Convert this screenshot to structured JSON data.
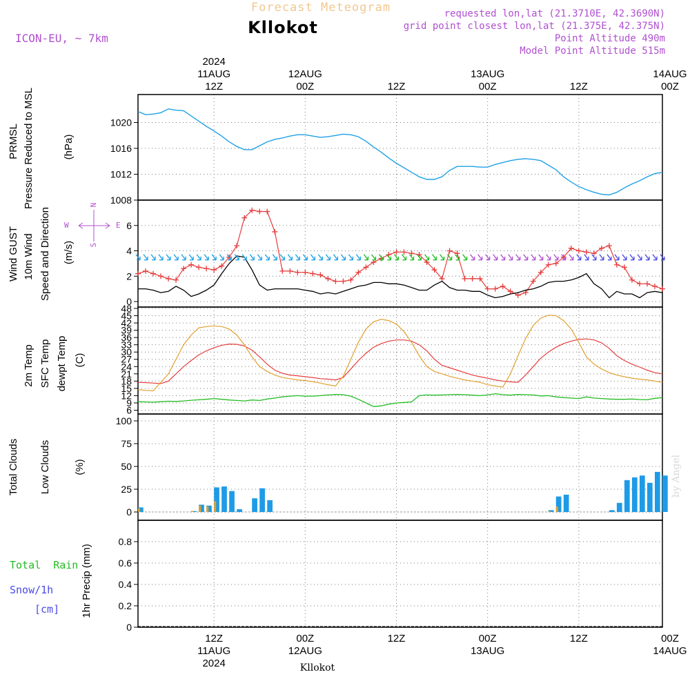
{
  "header": {
    "super_title": "Forecast Meteogram",
    "location": "Kllokot",
    "model": "ICON-EU,  ~ 7km",
    "requested": "requested lon,lat (21.3710E, 42.3690N)",
    "grid_point": "grid point closest lon,lat (21.375E, 42.375N)",
    "point_altitude": "Point Altitude 490m",
    "model_altitude": "Model Point Altitude 515m",
    "footer_location": "Kllokot",
    "credit": "by Angel"
  },
  "colors": {
    "pressure": "#1ea0e6",
    "gust": "#e63c3c",
    "wind": "#000000",
    "green": "#22bb22",
    "orange": "#e0a030",
    "total_clouds": "#1e9be6",
    "low_clouds": "#e0a030",
    "snow": "#4a4ae6",
    "purple": "#b050d0"
  },
  "time_axis": {
    "hours_start": 0,
    "hours_end": 69,
    "top_ticks": [
      {
        "hour": 10,
        "lines": [
          "2024",
          "11AUG",
          "12Z"
        ]
      },
      {
        "hour": 22,
        "lines": [
          "12AUG",
          "00Z"
        ]
      },
      {
        "hour": 34,
        "lines": [
          "12Z"
        ]
      },
      {
        "hour": 46,
        "lines": [
          "13AUG",
          "00Z"
        ]
      },
      {
        "hour": 58,
        "lines": [
          "12Z"
        ]
      },
      {
        "hour": 70,
        "lines": [
          "14AUG",
          "00Z"
        ]
      }
    ],
    "bottom_ticks": [
      {
        "hour": 10,
        "lines": [
          "12Z",
          "11AUG",
          "2024"
        ]
      },
      {
        "hour": 22,
        "lines": [
          "00Z",
          "12AUG"
        ]
      },
      {
        "hour": 34,
        "lines": [
          "12Z"
        ]
      },
      {
        "hour": 46,
        "lines": [
          "00Z",
          "13AUG"
        ]
      },
      {
        "hour": 58,
        "lines": [
          "12Z"
        ]
      },
      {
        "hour": 70,
        "lines": [
          "00Z",
          "14AUG"
        ]
      }
    ]
  },
  "panel_labels": {
    "pressure": {
      "name": "PRMSL",
      "sub": "Pressure Reduced to MSL",
      "unit": "(hPa)"
    },
    "wind": {
      "gust": "Wind GUST",
      "wind": "10m Wind",
      "dir": "Speed and Direction",
      "unit": "(m/s)",
      "compass_n": "N",
      "compass_s": "S",
      "compass_e": "E",
      "compass_w": "W"
    },
    "temp": {
      "t2m": "2m Temp",
      "sfc": "SFC Temp",
      "dewpt": "dewpt Temp",
      "unit": "(C)"
    },
    "clouds": {
      "total": "Total Clouds",
      "low": "Low Clouds",
      "unit": "(%)"
    },
    "precip": {
      "rain": "Total  Rain",
      "snow": "Snow/1h",
      "snow_unit": "[cm]",
      "axis": "1hr Precip (mm)"
    }
  },
  "chart_data": [
    {
      "type": "line",
      "panel": "pressure",
      "ylim": [
        1008,
        1024
      ],
      "yticks": [
        1008,
        1012,
        1016,
        1020
      ],
      "x": [
        0,
        1,
        2,
        3,
        4,
        5,
        6,
        7,
        8,
        9,
        10,
        11,
        12,
        13,
        14,
        15,
        16,
        17,
        18,
        19,
        20,
        21,
        22,
        23,
        24,
        25,
        26,
        27,
        28,
        29,
        30,
        31,
        32,
        33,
        34,
        35,
        36,
        37,
        38,
        39,
        40,
        41,
        42,
        43,
        44,
        45,
        46,
        47,
        48,
        49,
        50,
        51,
        52,
        53,
        54,
        55,
        56,
        57,
        58,
        59,
        60,
        61,
        62,
        63,
        64,
        65,
        66,
        67,
        68,
        69
      ],
      "series": [
        {
          "values": [
            1021.7,
            1021.2,
            1021.3,
            1021.5,
            1022.1,
            1021.9,
            1021.8,
            1021.0,
            1020.2,
            1019.4,
            1018.7,
            1017.9,
            1017.0,
            1016.3,
            1015.8,
            1015.8,
            1016.4,
            1017.0,
            1017.4,
            1017.6,
            1017.9,
            1018.1,
            1018.1,
            1017.9,
            1017.7,
            1017.8,
            1018.0,
            1018.2,
            1018.1,
            1017.8,
            1017.1,
            1016.2,
            1015.4,
            1014.5,
            1013.7,
            1013.0,
            1012.3,
            1011.6,
            1011.2,
            1011.2,
            1011.6,
            1012.6,
            1013.2,
            1013.2,
            1013.2,
            1013.1,
            1013.1,
            1013.5,
            1013.8,
            1014.1,
            1014.3,
            1014.4,
            1014.3,
            1014.1,
            1013.4,
            1012.7,
            1011.6,
            1010.8,
            1010.1,
            1009.6,
            1009.2,
            1008.9,
            1008.8,
            1009.2,
            1009.9,
            1010.5,
            1011.0,
            1011.6,
            1012.1,
            1012.3
          ]
        }
      ]
    },
    {
      "type": "line",
      "panel": "wind",
      "ylim": [
        0,
        8
      ],
      "yticks": [
        0,
        2,
        4,
        6
      ],
      "x": [
        0,
        1,
        2,
        3,
        4,
        5,
        6,
        7,
        8,
        9,
        10,
        11,
        12,
        13,
        14,
        15,
        16,
        17,
        18,
        19,
        20,
        21,
        22,
        23,
        24,
        25,
        26,
        27,
        28,
        29,
        30,
        31,
        32,
        33,
        34,
        35,
        36,
        37,
        38,
        39,
        40,
        41,
        42,
        43,
        44,
        45,
        46,
        47,
        48,
        49,
        50,
        51,
        52,
        53,
        54,
        55,
        56,
        57,
        58,
        59,
        60,
        61,
        62,
        63,
        64,
        65,
        66,
        67,
        68,
        69
      ],
      "series": [
        {
          "values": [
            2.2,
            2.4,
            2.2,
            2.0,
            1.8,
            1.7,
            2.6,
            2.9,
            2.7,
            2.6,
            2.5,
            2.8,
            3.5,
            4.4,
            6.6,
            7.2,
            7.1,
            7.1,
            5.5,
            2.4,
            2.4,
            2.3,
            2.3,
            2.2,
            2.1,
            1.8,
            1.6,
            1.6,
            1.7,
            2.3,
            2.7,
            3.1,
            3.4,
            3.7,
            3.9,
            3.9,
            3.8,
            3.7,
            3.1,
            2.5,
            1.8,
            4.0,
            3.8,
            1.8,
            1.8,
            1.8,
            1.0,
            1.0,
            1.2,
            0.8,
            0.5,
            0.7,
            1.6,
            2.3,
            2.9,
            3.0,
            3.5,
            4.2,
            4.0,
            3.9,
            3.8,
            4.2,
            4.4,
            2.9,
            2.7,
            1.7,
            1.4,
            1.4,
            1.2,
            1.0
          ]
        },
        {
          "values": [
            1.0,
            1.0,
            0.9,
            0.7,
            0.8,
            1.2,
            0.9,
            0.4,
            0.6,
            0.9,
            1.3,
            2.2,
            3.0,
            3.6,
            3.5,
            2.5,
            1.3,
            0.9,
            1.0,
            1.0,
            1.0,
            1.0,
            0.9,
            0.8,
            0.6,
            0.7,
            0.6,
            0.8,
            1.0,
            1.2,
            1.3,
            1.5,
            1.5,
            1.4,
            1.4,
            1.3,
            1.1,
            0.9,
            0.9,
            1.3,
            1.6,
            1.1,
            0.9,
            0.9,
            0.8,
            0.8,
            0.5,
            0.3,
            0.4,
            0.6,
            0.7,
            0.9,
            1.0,
            1.2,
            1.5,
            1.6,
            1.6,
            1.7,
            1.9,
            2.2,
            1.4,
            1.0,
            0.3,
            0.8,
            0.6,
            0.6,
            0.3,
            0.7,
            0.8,
            0.7
          ]
        }
      ]
    },
    {
      "type": "line",
      "panel": "temperature",
      "ylim": [
        5,
        48
      ],
      "yticks": [
        6,
        9,
        12,
        15,
        18,
        21,
        24,
        27,
        30,
        33,
        36,
        39,
        42,
        45,
        48
      ],
      "x": [
        0,
        1,
        2,
        3,
        4,
        5,
        6,
        7,
        8,
        9,
        10,
        11,
        12,
        13,
        14,
        15,
        16,
        17,
        18,
        19,
        20,
        21,
        22,
        23,
        24,
        25,
        26,
        27,
        28,
        29,
        30,
        31,
        32,
        33,
        34,
        35,
        36,
        37,
        38,
        39,
        40,
        41,
        42,
        43,
        44,
        45,
        46,
        47,
        48,
        49,
        50,
        51,
        52,
        53,
        54,
        55,
        56,
        57,
        58,
        59,
        60,
        61,
        62,
        63,
        64,
        65,
        66,
        67,
        68,
        69
      ],
      "series": [
        {
          "values": [
            17.5,
            17.4,
            17.2,
            17.0,
            18.0,
            21.0,
            24.0,
            26.5,
            28.8,
            30.5,
            31.8,
            32.8,
            33.3,
            33.2,
            32.5,
            30.8,
            28.0,
            25.0,
            22.5,
            21.2,
            20.5,
            20.2,
            19.8,
            19.5,
            19.0,
            18.8,
            18.5,
            19.5,
            23.0,
            26.5,
            29.5,
            32.0,
            33.5,
            34.5,
            35.0,
            35.0,
            34.5,
            33.0,
            30.5,
            27.0,
            24.5,
            23.5,
            22.5,
            21.5,
            20.5,
            19.8,
            19.2,
            18.5,
            18.0,
            17.7,
            17.5,
            20.5,
            24.0,
            27.5,
            30.0,
            32.0,
            33.5,
            34.5,
            35.2,
            35.4,
            35.0,
            33.8,
            31.5,
            28.5,
            26.5,
            25.0,
            23.8,
            22.5,
            21.5,
            21.0
          ]
        },
        {
          "values": [
            14.5,
            14.2,
            14.0,
            17.5,
            21.0,
            27.0,
            33.0,
            37.0,
            40.0,
            40.5,
            40.8,
            40.5,
            39.5,
            37.0,
            33.0,
            28.0,
            24.0,
            22.0,
            20.5,
            19.5,
            19.0,
            18.5,
            18.2,
            17.8,
            17.2,
            16.5,
            16.0,
            20.0,
            27.0,
            34.0,
            39.5,
            42.5,
            43.5,
            43.0,
            41.5,
            38.5,
            34.0,
            28.5,
            24.0,
            22.0,
            21.0,
            20.0,
            19.2,
            18.5,
            18.0,
            17.5,
            16.5,
            16.0,
            15.5,
            21.0,
            28.5,
            35.5,
            41.0,
            44.0,
            45.2,
            45.0,
            43.0,
            39.5,
            34.0,
            28.0,
            25.0,
            23.0,
            21.5,
            20.5,
            19.8,
            19.2,
            18.8,
            18.5,
            18.0,
            17.5
          ]
        },
        {
          "values": [
            9.5,
            9.4,
            9.3,
            9.5,
            9.7,
            9.6,
            9.8,
            10.1,
            10.3,
            10.5,
            10.8,
            10.5,
            10.2,
            10.0,
            9.8,
            10.2,
            10.0,
            10.6,
            11.0,
            11.5,
            11.8,
            12.0,
            11.8,
            11.8,
            12.0,
            12.3,
            12.5,
            12.4,
            11.8,
            10.5,
            9.0,
            7.5,
            7.8,
            8.5,
            9.0,
            9.2,
            9.4,
            12.0,
            12.3,
            12.2,
            12.3,
            12.4,
            12.5,
            12.4,
            12.2,
            12.0,
            12.3,
            12.8,
            12.4,
            12.2,
            12.5,
            12.4,
            12.3,
            11.9,
            12.0,
            11.5,
            11.2,
            11.0,
            10.8,
            11.5,
            11.0,
            10.8,
            10.6,
            10.5,
            10.5,
            10.6,
            10.4,
            10.3,
            10.9,
            11.2
          ]
        }
      ]
    },
    {
      "type": "bar",
      "panel": "clouds",
      "ylim": [
        0,
        100
      ],
      "yticks": [
        0,
        25,
        50,
        75,
        100
      ],
      "x": [
        0,
        1,
        2,
        3,
        4,
        5,
        6,
        7,
        8,
        9,
        10,
        11,
        12,
        13,
        14,
        15,
        16,
        17,
        18,
        19,
        20,
        21,
        22,
        23,
        24,
        25,
        26,
        27,
        28,
        29,
        30,
        31,
        32,
        33,
        34,
        35,
        36,
        37,
        38,
        39,
        40,
        41,
        42,
        43,
        44,
        45,
        46,
        47,
        48,
        49,
        50,
        51,
        52,
        53,
        54,
        55,
        56,
        57,
        58,
        59,
        60,
        61,
        62,
        63,
        64,
        65,
        66,
        67,
        68,
        69
      ],
      "series": [
        {
          "name": "Total Clouds",
          "values": [
            5,
            0,
            0,
            0,
            0,
            0,
            0,
            1,
            8,
            7,
            27,
            28,
            23,
            3,
            0,
            15,
            26,
            13,
            0,
            0,
            0,
            0,
            0,
            0,
            0,
            0,
            0,
            0,
            0,
            0,
            0,
            0,
            0,
            0,
            0,
            0,
            0,
            0,
            0,
            0,
            0,
            0,
            0,
            0,
            0,
            0,
            0,
            0,
            0,
            0,
            0,
            0,
            0,
            0,
            2,
            17,
            19,
            0,
            0,
            0,
            0,
            0,
            2,
            10,
            35,
            38,
            40,
            32,
            44,
            40
          ]
        },
        {
          "name": "Low Clouds",
          "values": [
            4,
            0,
            0,
            0,
            0,
            0,
            0,
            1,
            7,
            6,
            12,
            0,
            0,
            0,
            0,
            0,
            0,
            0,
            0,
            0,
            0,
            0,
            0,
            0,
            0,
            0,
            0,
            0,
            0,
            0,
            0,
            0,
            0,
            0,
            0,
            0,
            0,
            0,
            0,
            0,
            0,
            0,
            0,
            0,
            0,
            0,
            0,
            0,
            0,
            0,
            0,
            0,
            0,
            0,
            1,
            6,
            0,
            0,
            0,
            0,
            0,
            0,
            0,
            0,
            0,
            0,
            0,
            0,
            0,
            0
          ]
        }
      ]
    },
    {
      "type": "bar",
      "panel": "precip",
      "ylim": [
        0,
        1
      ],
      "yticks": [
        0,
        0.2,
        0.4,
        0.6,
        0.8
      ],
      "x": [
        0,
        1,
        2,
        3,
        4,
        5,
        6,
        7,
        8,
        9,
        10,
        11,
        12,
        13,
        14,
        15,
        16,
        17,
        18,
        19,
        20,
        21,
        22,
        23,
        24,
        25,
        26,
        27,
        28,
        29,
        30,
        31,
        32,
        33,
        34,
        35,
        36,
        37,
        38,
        39,
        40,
        41,
        42,
        43,
        44,
        45,
        46,
        47,
        48,
        49,
        50,
        51,
        52,
        53,
        54,
        55,
        56,
        57,
        58,
        59,
        60,
        61,
        62,
        63,
        64,
        65,
        66,
        67,
        68,
        69
      ],
      "series": [
        {
          "values": [
            0,
            0,
            0,
            0,
            0,
            0,
            0,
            0,
            0,
            0,
            0,
            0,
            0,
            0,
            0,
            0,
            0,
            0,
            0,
            0,
            0,
            0,
            0,
            0,
            0,
            0,
            0,
            0,
            0,
            0,
            0,
            0,
            0,
            0,
            0,
            0,
            0,
            0,
            0,
            0,
            0,
            0,
            0,
            0,
            0,
            0,
            0,
            0,
            0,
            0,
            0,
            0,
            0,
            0,
            0,
            0,
            0,
            0,
            0,
            0,
            0,
            0,
            0,
            0,
            0,
            0,
            0,
            0,
            0,
            0
          ]
        }
      ]
    }
  ]
}
